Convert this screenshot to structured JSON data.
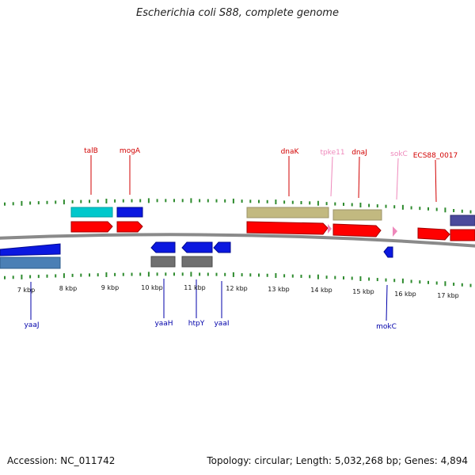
{
  "title": "Escherichia coli S88, complete genome",
  "footer": {
    "accession": "Accession: NC_011742",
    "topology": "Topology: circular; Length: 5,032,268 bp; Genes: 4,894"
  },
  "colors": {
    "backbone": "#8a8a8a",
    "tick": "#2e8b2e",
    "cds": "#ff0000",
    "gene_top": "#00c8cc",
    "gene_olive": "#c2b980",
    "gene_purple": "#4b4a9c",
    "gene_blue": "#0b18e0",
    "gene_steel": "#4a7fb5",
    "gene_grey": "#707070",
    "trna": "#ee88bb",
    "label_forward": "#d20000",
    "label_pink": "#ee88bb",
    "label_reverse": "#0000aa"
  },
  "scale": {
    "unit": "kbp",
    "labels": [
      {
        "kbp": 7,
        "text": "7 kbp"
      },
      {
        "kbp": 8,
        "text": "8 kbp"
      },
      {
        "kbp": 9,
        "text": "9 kbp"
      },
      {
        "kbp": 10,
        "text": "10 kbp"
      },
      {
        "kbp": 11,
        "text": "11 kbp"
      },
      {
        "kbp": 12,
        "text": "12 kbp"
      },
      {
        "kbp": 13,
        "text": "13 kbp"
      },
      {
        "kbp": 14,
        "text": "14 kbp"
      },
      {
        "kbp": 15,
        "text": "15 kbp"
      },
      {
        "kbp": 16,
        "text": "16 kbp"
      },
      {
        "kbp": 17,
        "text": "17 kbp"
      }
    ]
  },
  "features": [
    {
      "name": "yaaJ",
      "strand": "reverse",
      "start_kbp": 6.3,
      "end_kbp": 7.7,
      "kind": "gene",
      "label_color": "label_reverse"
    },
    {
      "name": "talB",
      "strand": "forward",
      "start_kbp": 8.0,
      "end_kbp": 9.0,
      "kind": "gene",
      "label_color": "label_forward"
    },
    {
      "name": "mogA",
      "strand": "forward",
      "start_kbp": 9.15,
      "end_kbp": 9.75,
      "kind": "gene",
      "label_color": "label_forward"
    },
    {
      "name": "yaaH",
      "strand": "reverse",
      "start_kbp": 10.0,
      "end_kbp": 10.55,
      "kind": "gene",
      "label_color": "label_reverse"
    },
    {
      "name": "htpY",
      "strand": "reverse",
      "start_kbp": 10.75,
      "end_kbp": 11.45,
      "kind": "gene",
      "label_color": "label_reverse"
    },
    {
      "name": "yaaI",
      "strand": "reverse",
      "start_kbp": 11.55,
      "end_kbp": 11.95,
      "kind": "gene",
      "label_color": "label_reverse"
    },
    {
      "name": "dnaK",
      "strand": "forward",
      "start_kbp": 12.15,
      "end_kbp": 14.1,
      "kind": "gene",
      "label_color": "label_forward"
    },
    {
      "name": "tpke11",
      "strand": "forward",
      "start_kbp": 14.1,
      "end_kbp": 14.2,
      "kind": "misc",
      "label_color": "label_pink"
    },
    {
      "name": "dnaJ",
      "strand": "forward",
      "start_kbp": 14.2,
      "end_kbp": 15.35,
      "kind": "gene",
      "label_color": "label_forward"
    },
    {
      "name": "sokC",
      "strand": "forward",
      "start_kbp": 15.7,
      "end_kbp": 15.8,
      "kind": "misc",
      "label_color": "label_pink"
    },
    {
      "name": "mokC",
      "strand": "reverse",
      "start_kbp": 15.5,
      "end_kbp": 15.7,
      "kind": "gene",
      "label_color": "label_reverse"
    },
    {
      "name": "ECS88_0017",
      "strand": "forward",
      "start_kbp": 16.3,
      "end_kbp": 17.1,
      "kind": "gene",
      "label_color": "label_forward"
    }
  ]
}
